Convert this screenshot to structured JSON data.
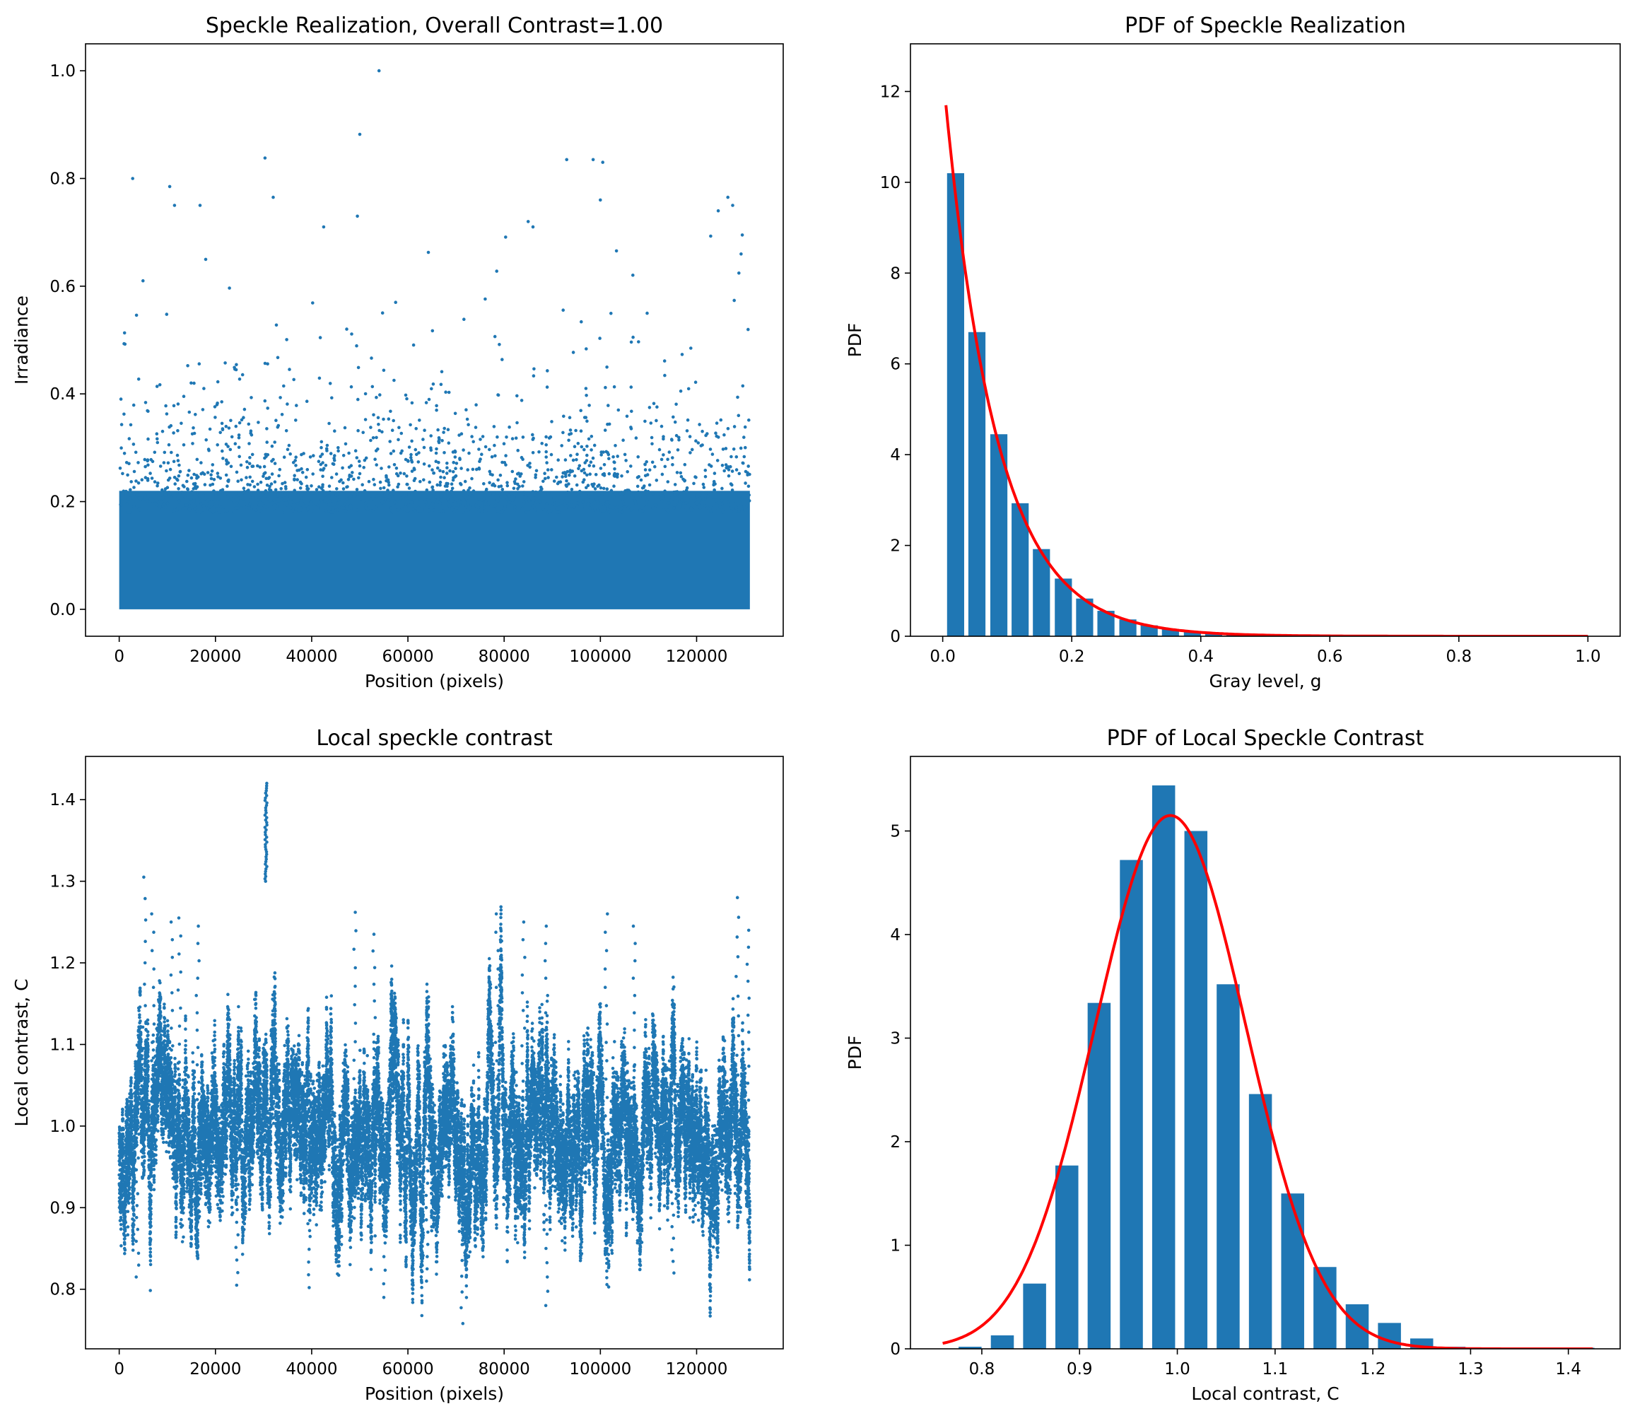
{
  "figure": {
    "colors": {
      "marker": "#1f77b4",
      "bar": "#1f77b4",
      "fit": "#ff0000"
    }
  },
  "chart_data": [
    {
      "id": "speckle",
      "type": "scatter",
      "title": "Speckle Realization, Overall Contrast=1.00",
      "xlabel": "Position (pixels)",
      "ylabel": "Irradiance",
      "xlim": [
        -7000,
        138000
      ],
      "ylim": [
        -0.05,
        1.05
      ],
      "xticks": [
        0,
        20000,
        40000,
        60000,
        80000,
        100000,
        120000
      ],
      "yticks": [
        0.0,
        0.2,
        0.4,
        0.6,
        0.8,
        1.0
      ],
      "x_range": [
        0,
        131072
      ],
      "distribution": "exponential",
      "mean": 0.08,
      "dense_below": 0.22,
      "outliers": [
        [
          2800,
          0.8
        ],
        [
          10500,
          0.785
        ],
        [
          11500,
          0.75
        ],
        [
          16800,
          0.75
        ],
        [
          30300,
          0.838
        ],
        [
          32000,
          0.765
        ],
        [
          42500,
          0.71
        ],
        [
          49500,
          0.73
        ],
        [
          50000,
          0.882
        ],
        [
          54000,
          1.0
        ],
        [
          85000,
          0.72
        ],
        [
          86000,
          0.71
        ],
        [
          93000,
          0.835
        ],
        [
          98500,
          0.835
        ],
        [
          100500,
          0.83
        ],
        [
          100000,
          0.76
        ],
        [
          124500,
          0.74
        ],
        [
          126500,
          0.765
        ],
        [
          127500,
          0.75
        ],
        [
          129500,
          0.695
        ]
      ]
    },
    {
      "id": "pdf-speckle",
      "type": "bar",
      "title": "PDF of Speckle Realization",
      "xlabel": "Gray level, g",
      "ylabel": "PDF",
      "xlim": [
        -0.05,
        1.05
      ],
      "ylim": [
        0,
        13.05
      ],
      "xticks": [
        0.0,
        0.2,
        0.4,
        0.6,
        0.8,
        1.0
      ],
      "yticks": [
        0,
        2,
        4,
        6,
        8,
        10,
        12
      ],
      "bar_width": 0.0265,
      "x": [
        0.02,
        0.053,
        0.087,
        0.12,
        0.153,
        0.187,
        0.22,
        0.253,
        0.287,
        0.32,
        0.353,
        0.387,
        0.42,
        0.453,
        0.487,
        0.52
      ],
      "values": [
        10.2,
        6.7,
        4.45,
        2.93,
        1.92,
        1.27,
        0.83,
        0.56,
        0.37,
        0.24,
        0.16,
        0.1,
        0.07,
        0.05,
        0.03,
        0.02
      ],
      "fit": {
        "kind": "exponential",
        "amplitude": 12.45,
        "rate": 12.45,
        "x_range": [
          0.005,
          1.0
        ]
      }
    },
    {
      "id": "local-contrast",
      "type": "scatter",
      "title": "Local speckle contrast",
      "xlabel": "Position (pixels)",
      "ylabel": "Local contrast, C",
      "xlim": [
        -7000,
        138000
      ],
      "ylim": [
        0.727,
        1.453
      ],
      "xticks": [
        0,
        20000,
        40000,
        60000,
        80000,
        100000,
        120000
      ],
      "yticks": [
        0.8,
        0.9,
        1.0,
        1.1,
        1.2,
        1.3,
        1.4
      ],
      "x_range": [
        0,
        131072
      ],
      "baseline": 0.99,
      "spread": 0.06,
      "spikes": [
        [
          5200,
          1.305
        ],
        [
          7000,
          1.26
        ],
        [
          11000,
          1.25
        ],
        [
          12500,
          1.255
        ],
        [
          16300,
          1.245
        ],
        [
          49000,
          1.262
        ],
        [
          53000,
          1.235
        ],
        [
          78500,
          1.26
        ],
        [
          84000,
          1.25
        ],
        [
          88800,
          1.245
        ],
        [
          101200,
          1.26
        ],
        [
          107000,
          1.245
        ],
        [
          128500,
          1.28
        ],
        [
          130800,
          1.24
        ]
      ],
      "dips": [
        [
          3800,
          0.815
        ],
        [
          24500,
          0.805
        ],
        [
          39500,
          0.802
        ],
        [
          55000,
          0.79
        ],
        [
          71300,
          0.758
        ],
        [
          88900,
          0.78
        ],
        [
          64000,
          0.81
        ],
        [
          115000,
          0.82
        ]
      ],
      "cluster": {
        "x": 30500,
        "from": 1.3,
        "to": 1.42
      }
    },
    {
      "id": "pdf-contrast",
      "type": "bar",
      "title": "PDF of Local Speckle Contrast",
      "xlabel": "Local contrast, C",
      "ylabel": "PDF",
      "xlim": [
        0.727,
        1.453
      ],
      "ylim": [
        0,
        5.72
      ],
      "xticks": [
        0.8,
        0.9,
        1.0,
        1.1,
        1.2,
        1.3,
        1.4
      ],
      "yticks": [
        0,
        1,
        2,
        3,
        4,
        5
      ],
      "bar_width": 0.0235,
      "x": [
        0.788,
        0.821,
        0.854,
        0.887,
        0.92,
        0.953,
        0.986,
        1.019,
        1.052,
        1.085,
        1.118,
        1.151,
        1.184,
        1.217,
        1.25,
        1.283,
        1.316,
        1.349,
        1.382,
        1.415
      ],
      "values": [
        0.02,
        0.13,
        0.63,
        1.77,
        3.34,
        4.72,
        5.44,
        5.0,
        3.52,
        2.46,
        1.5,
        0.79,
        0.43,
        0.25,
        0.1,
        0.02,
        0.01,
        0.01,
        0.0,
        0.01
      ],
      "fit": {
        "kind": "gaussian",
        "peak": 5.15,
        "mean": 0.993,
        "sigma": 0.077,
        "x_range": [
          0.76,
          1.425
        ]
      }
    }
  ]
}
